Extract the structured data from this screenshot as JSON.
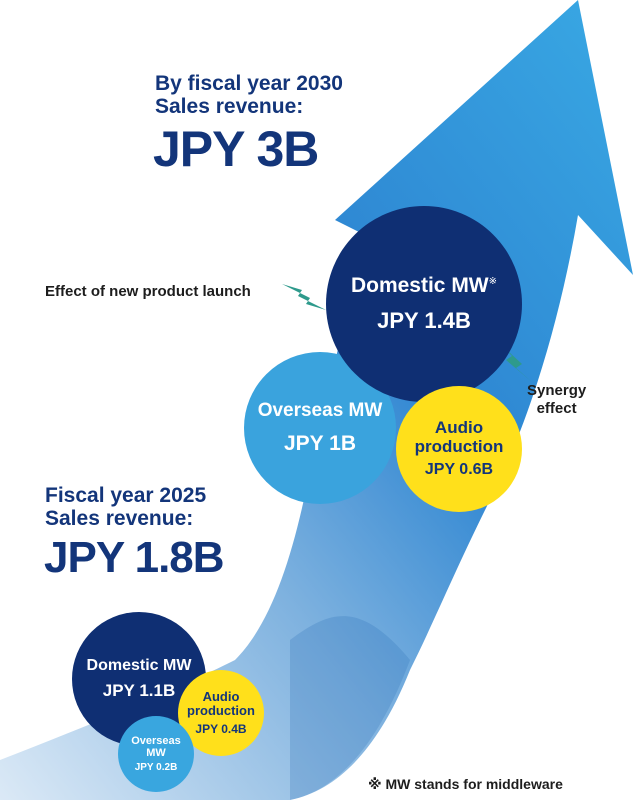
{
  "target": {
    "line1": "By fiscal year 2030",
    "line2": "Sales revenue:",
    "amount": "JPY 3B"
  },
  "current": {
    "line1": "Fiscal year 2025",
    "line2": "Sales revenue:",
    "amount": "JPY 1.8B"
  },
  "circles_2030": {
    "domestic": {
      "name": "Domestic MW",
      "mark": "※",
      "value": "JPY 1.4B"
    },
    "overseas": {
      "name": "Overseas MW",
      "value": "JPY 1B"
    },
    "audio": {
      "name_line1": "Audio",
      "name_line2": "production",
      "value": "JPY 0.6B"
    }
  },
  "circles_2025": {
    "domestic": {
      "name": "Domestic MW",
      "value": "JPY 1.1B"
    },
    "audio": {
      "name_line1": "Audio",
      "name_line2": "production",
      "value": "JPY 0.4B"
    },
    "overseas": {
      "name_line1": "Overseas",
      "name_line2": "MW",
      "value": "JPY 0.2B"
    }
  },
  "annotations": {
    "new_product": "Effect of new product launch",
    "synergy_line1": "Synergy",
    "synergy_line2": "effect"
  },
  "footnote": "※ MW stands for middleware",
  "colors": {
    "navy": "#0f2f73",
    "light_blue": "#3aa3dd",
    "yellow": "#ffe01b",
    "teal_arrow": "#2e9a8c",
    "arrow_blue": "#1f7fcf"
  }
}
